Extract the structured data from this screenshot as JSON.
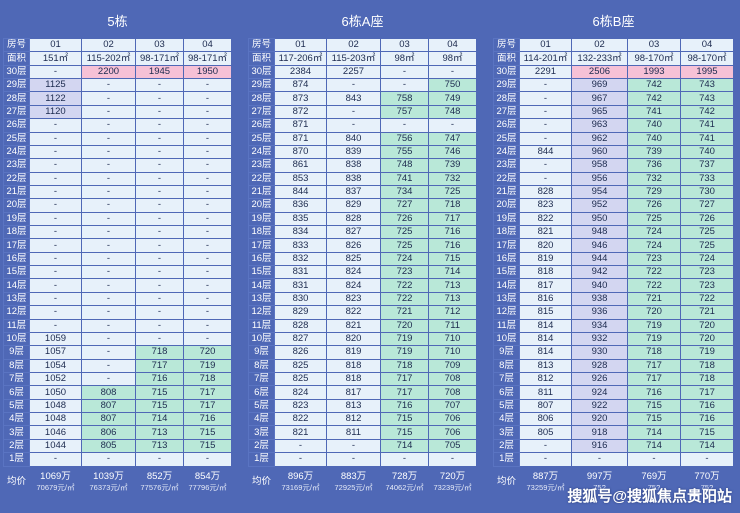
{
  "labels": {
    "room": "房号",
    "area": "面积",
    "avg": "均价"
  },
  "watermark": "搜狐号@搜狐焦点贵阳站",
  "floors": [
    "30层",
    "29层",
    "28层",
    "27层",
    "26层",
    "25层",
    "24层",
    "23层",
    "22层",
    "21层",
    "20层",
    "19层",
    "18层",
    "17层",
    "16层",
    "15层",
    "14层",
    "13层",
    "12层",
    "11层",
    "10层",
    "9层",
    "8层",
    "7层",
    "6层",
    "5层",
    "4层",
    "3层",
    "2层",
    "1层"
  ],
  "blocks": [
    {
      "title": "5栋",
      "rooms": [
        "01",
        "02",
        "03",
        "04"
      ],
      "areas": [
        "151㎡",
        "115-202㎡",
        "98-171㎡",
        "98-171㎡"
      ],
      "cols": [
        [
          "-",
          "1125",
          "1122",
          "1120",
          "-",
          "-",
          "-",
          "-",
          "-",
          "-",
          "-",
          "-",
          "-",
          "-",
          "-",
          "-",
          "-",
          "-",
          "-",
          "-",
          "1059",
          "1057",
          "1054",
          "1052",
          "1050",
          "1048",
          "1048",
          "1046",
          "1044",
          "-"
        ],
        [
          "2200",
          "-",
          "-",
          "-",
          "-",
          "-",
          "-",
          "-",
          "-",
          "-",
          "-",
          "-",
          "-",
          "-",
          "-",
          "-",
          "-",
          "-",
          "-",
          "-",
          "-",
          "-",
          "-",
          "-",
          "808",
          "807",
          "807",
          "806",
          "805",
          "-"
        ],
        [
          "1945",
          "-",
          "-",
          "-",
          "-",
          "-",
          "-",
          "-",
          "-",
          "-",
          "-",
          "-",
          "-",
          "-",
          "-",
          "-",
          "-",
          "-",
          "-",
          "-",
          "-",
          "718",
          "717",
          "716",
          "715",
          "715",
          "714",
          "713",
          "713",
          "-"
        ],
        [
          "1950",
          "-",
          "-",
          "-",
          "-",
          "-",
          "-",
          "-",
          "-",
          "-",
          "-",
          "-",
          "-",
          "-",
          "-",
          "-",
          "-",
          "-",
          "-",
          "-",
          "-",
          "720",
          "719",
          "718",
          "717",
          "717",
          "716",
          "715",
          "715",
          "-"
        ]
      ],
      "avg": [
        [
          "1069万",
          "70679元/㎡"
        ],
        [
          "1039万",
          "76373元/㎡"
        ],
        [
          "852万",
          "77576元/㎡"
        ],
        [
          "854万",
          "77796元/㎡"
        ]
      ]
    },
    {
      "title": "6栋A座",
      "rooms": [
        "01",
        "02",
        "03",
        "04"
      ],
      "areas": [
        "117-206㎡",
        "115-203㎡",
        "98㎡",
        "98㎡"
      ],
      "cols": [
        [
          "2384",
          "874",
          "873",
          "872",
          "871",
          "871",
          "870",
          "861",
          "853",
          "844",
          "836",
          "835",
          "834",
          "833",
          "832",
          "831",
          "831",
          "830",
          "829",
          "828",
          "827",
          "826",
          "825",
          "825",
          "824",
          "823",
          "822",
          "821",
          "-",
          "-"
        ],
        [
          "2257",
          "-",
          "843",
          "-",
          "-",
          "840",
          "839",
          "838",
          "838",
          "837",
          "829",
          "828",
          "827",
          "826",
          "825",
          "824",
          "824",
          "823",
          "822",
          "821",
          "820",
          "819",
          "818",
          "818",
          "817",
          "813",
          "812",
          "811",
          "-",
          "-"
        ],
        [
          "-",
          "-",
          "758",
          "757",
          "-",
          "756",
          "755",
          "748",
          "741",
          "734",
          "727",
          "726",
          "725",
          "725",
          "724",
          "723",
          "722",
          "722",
          "721",
          "720",
          "719",
          "719",
          "718",
          "717",
          "717",
          "716",
          "715",
          "715",
          "714",
          "-"
        ],
        [
          "-",
          "750",
          "749",
          "748",
          "-",
          "747",
          "746",
          "739",
          "732",
          "725",
          "718",
          "717",
          "716",
          "716",
          "715",
          "714",
          "713",
          "713",
          "712",
          "711",
          "710",
          "710",
          "709",
          "708",
          "708",
          "707",
          "706",
          "706",
          "705",
          "-"
        ]
      ],
      "avg": [
        [
          "896万",
          "73169元/㎡"
        ],
        [
          "883万",
          "72925元/㎡"
        ],
        [
          "728万",
          "74062元/㎡"
        ],
        [
          "720万",
          "73239元/㎡"
        ]
      ]
    },
    {
      "title": "6栋B座",
      "rooms": [
        "01",
        "02",
        "03",
        "04"
      ],
      "areas": [
        "114-201㎡",
        "132-233㎡",
        "98-170㎡",
        "98-170㎡"
      ],
      "cols": [
        [
          "2291",
          "-",
          "-",
          "-",
          "-",
          "-",
          "844",
          "-",
          "-",
          "828",
          "823",
          "822",
          "821",
          "820",
          "819",
          "818",
          "817",
          "816",
          "815",
          "814",
          "814",
          "814",
          "813",
          "812",
          "811",
          "807",
          "806",
          "805",
          "-",
          "-"
        ],
        [
          "2506",
          "969",
          "967",
          "965",
          "963",
          "962",
          "960",
          "958",
          "956",
          "954",
          "952",
          "950",
          "948",
          "946",
          "944",
          "942",
          "940",
          "938",
          "936",
          "934",
          "932",
          "930",
          "928",
          "926",
          "924",
          "922",
          "920",
          "918",
          "916",
          "-"
        ],
        [
          "1993",
          "742",
          "742",
          "741",
          "740",
          "740",
          "739",
          "736",
          "732",
          "729",
          "726",
          "725",
          "724",
          "724",
          "723",
          "722",
          "722",
          "721",
          "720",
          "719",
          "719",
          "718",
          "717",
          "717",
          "716",
          "715",
          "715",
          "714",
          "714",
          "-"
        ],
        [
          "1995",
          "743",
          "743",
          "742",
          "741",
          "741",
          "740",
          "737",
          "733",
          "730",
          "727",
          "726",
          "725",
          "725",
          "724",
          "723",
          "723",
          "722",
          "721",
          "720",
          "720",
          "719",
          "718",
          "718",
          "717",
          "716",
          "716",
          "715",
          "714",
          "-"
        ]
      ],
      "avg": [
        [
          "887万",
          "73259元/㎡"
        ],
        [
          "997万",
          "75?"
        ],
        [
          "769万",
          "75?"
        ],
        [
          "770万",
          "75?"
        ]
      ]
    }
  ]
}
